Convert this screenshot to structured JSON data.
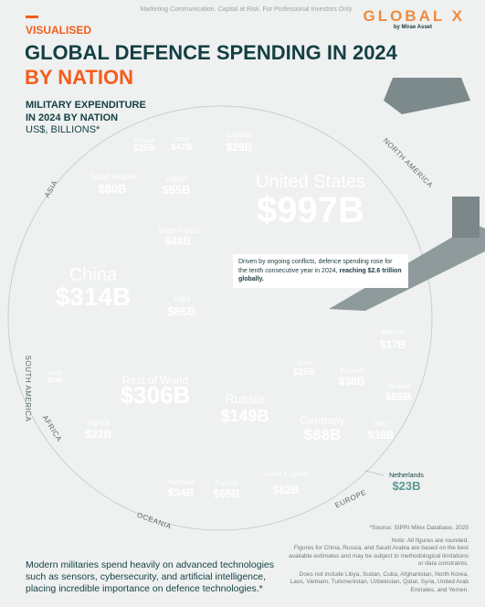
{
  "header": {
    "disclaimer": "Marketing Communication. Capital at Risk. For Professional Investors Only.",
    "logo": "GLOBAL X",
    "logo_sub": "by Mirae Asset",
    "kicker": "VISUALISED",
    "title": "GLOBAL DEFENCE SPENDING IN 2024",
    "title_accent": "BY NATION"
  },
  "chart_data": {
    "type": "voronoi",
    "subtitle": "MILITARY EXPENDITURE IN 2024 BY NATION",
    "unit": "US$, BILLIONS*",
    "region_labels": [
      "NORTH AMERICA",
      "ASIA",
      "SOUTH AMERICA",
      "AFRICA",
      "OCEANIA",
      "EUROPE"
    ],
    "groups": [
      {
        "color": "#f45d1e",
        "categories": [
          "United States",
          "Canada",
          "Mexico"
        ],
        "values": [
          997,
          29,
          17
        ],
        "value_labels": [
          "$997B",
          "$29B",
          "$17B"
        ]
      },
      {
        "color": "#124b4f",
        "categories": [
          "China",
          "India",
          "Saudi Arabia",
          "Japan",
          "South Korea",
          "Israel",
          "Türkiye"
        ],
        "values": [
          314,
          86,
          80,
          55,
          48,
          47,
          25
        ],
        "value_labels": [
          "$314B",
          "$86B",
          "$80B",
          "$55B",
          "$48B",
          "$47B",
          "$25B"
        ]
      },
      {
        "color": "#0f4246",
        "categories": [
          "Rest of World",
          "Brazil",
          "Algeria",
          "Australia"
        ],
        "values": [
          306,
          21,
          22,
          34
        ],
        "value_labels": [
          "$306B",
          "$21B",
          "$22B",
          "$34B"
        ]
      },
      {
        "color": "#5a9a94",
        "categories": [
          "Russia",
          "Germany",
          "United Kingdom",
          "France",
          "Ukraine",
          "Poland",
          "Italy",
          "Spain",
          "Netherlands"
        ],
        "values": [
          149,
          88,
          82,
          65,
          65,
          38,
          38,
          25,
          23
        ],
        "value_labels": [
          "$149B",
          "$88B",
          "$82B",
          "$65B",
          "$65B",
          "$38B",
          "$38B",
          "$25B",
          "$23B"
        ]
      }
    ],
    "annotation": "Driven by ongoing conflicts, defence spending rose for the tenth consecutive year in 2024,",
    "annotation_bold": "reaching $2.6 trillion globally."
  },
  "footer": {
    "source": "*Source: SIPRI Milex Database, 2025",
    "notes": [
      "Note: All figures are rounded.",
      "Figures for China, Russia, and Saudi Arabia are based on the best available estimates and may be subject to methodological limitations or data constraints.",
      "Does not include Libya, Sudan, Cuba, Afghanistan, North Korea, Laos, Vietnam, Turkmenistan, Uzbekistan, Qatar, Syria, United Arab Emirates, and Yemen."
    ],
    "text": "Modern militaries spend heavily on advanced technologies such as sensors, cybersecurity, and artificial intelligence, placing incredible importance on defence technologies.*"
  }
}
